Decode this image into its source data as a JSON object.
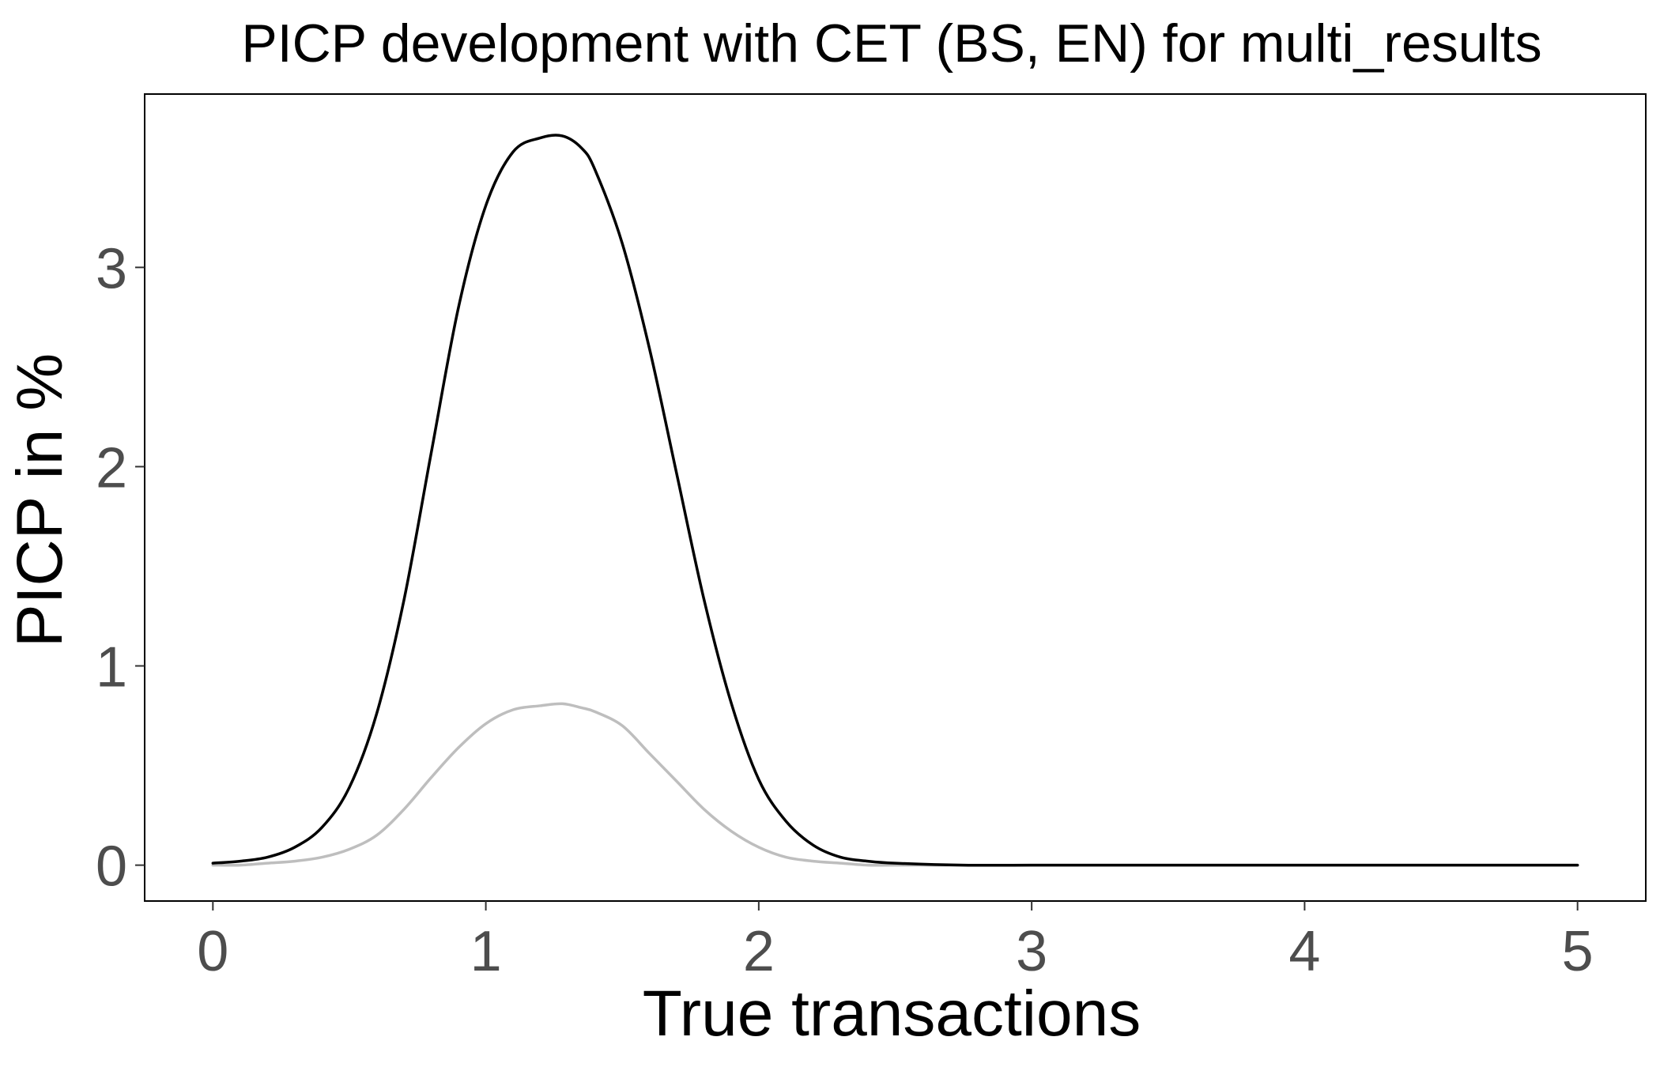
{
  "chart_data": {
    "type": "line",
    "title": "PICP development with CET (BS, EN) for multi_results",
    "xlabel": "True transactions",
    "ylabel": "PICP in %",
    "xlim": [
      -0.25,
      5.25
    ],
    "ylim": [
      -0.18,
      3.87
    ],
    "x_ticks": [
      0,
      1,
      2,
      3,
      4,
      5
    ],
    "y_ticks": [
      0,
      1,
      2,
      3
    ],
    "grid": false,
    "legend": "none",
    "x": [
      0,
      0.1,
      0.2,
      0.3,
      0.4,
      0.5,
      0.6,
      0.7,
      0.8,
      0.9,
      1.0,
      1.1,
      1.2,
      1.28,
      1.35,
      1.4,
      1.5,
      1.6,
      1.7,
      1.8,
      1.9,
      2.0,
      2.1,
      2.2,
      2.3,
      2.4,
      2.5,
      2.75,
      3.0,
      3.25,
      3.5,
      3.75,
      4.0,
      4.25,
      4.5,
      4.75,
      5.0
    ],
    "series": [
      {
        "color": "#000000",
        "values": [
          0.01,
          0.02,
          0.04,
          0.09,
          0.19,
          0.39,
          0.76,
          1.33,
          2.07,
          2.8,
          3.31,
          3.58,
          3.65,
          3.66,
          3.6,
          3.49,
          3.12,
          2.59,
          1.96,
          1.33,
          0.81,
          0.43,
          0.22,
          0.1,
          0.04,
          0.02,
          0.01,
          0.0,
          0.0,
          0.0,
          0.0,
          0.0,
          0.0,
          0.0,
          0.0,
          0.0,
          0.0
        ]
      },
      {
        "color": "#bebebe",
        "values": [
          0.0,
          0.0,
          0.01,
          0.02,
          0.04,
          0.08,
          0.15,
          0.28,
          0.44,
          0.59,
          0.71,
          0.78,
          0.8,
          0.81,
          0.79,
          0.77,
          0.7,
          0.56,
          0.42,
          0.28,
          0.17,
          0.09,
          0.04,
          0.02,
          0.01,
          0.0,
          0.0,
          0.0,
          0.0,
          0.0,
          0.0,
          0.0,
          0.0,
          0.0,
          0.0,
          0.0,
          0.0
        ]
      }
    ]
  }
}
